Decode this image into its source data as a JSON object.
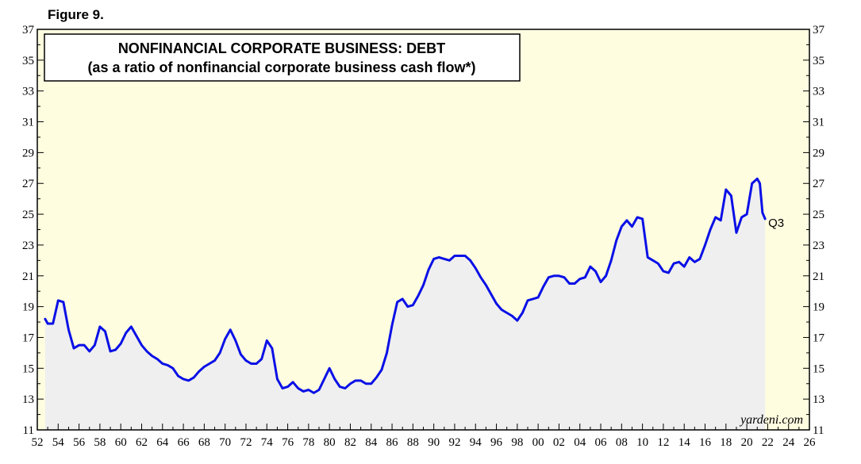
{
  "figure_label": "Figure 9.",
  "credit": "yardeni.com",
  "colors": {
    "plot_bg": "#fffde0",
    "area_fill": "#efefef",
    "line": "#0a10e6"
  },
  "chart_data": {
    "type": "line",
    "title": "NONFINANCIAL CORPORATE BUSINESS: DEBT",
    "subtitle": "(as a ratio of nonfinancial corporate business cash flow*)",
    "xlabel": "",
    "ylabel": "",
    "xlim": [
      1952,
      2026
    ],
    "ylim": [
      11,
      37
    ],
    "y_ticks": [
      11,
      13,
      15,
      17,
      19,
      21,
      23,
      25,
      27,
      29,
      31,
      33,
      35,
      37
    ],
    "x_ticks": [
      1952,
      1954,
      1956,
      1958,
      1960,
      1962,
      1964,
      1966,
      1968,
      1970,
      1972,
      1974,
      1976,
      1978,
      1980,
      1982,
      1984,
      1986,
      1988,
      1990,
      1992,
      1994,
      1996,
      1998,
      2000,
      2002,
      2004,
      2006,
      2008,
      2010,
      2012,
      2014,
      2016,
      2018,
      2020,
      2022,
      2024,
      2026
    ],
    "x_tick_labels": [
      "52",
      "54",
      "56",
      "58",
      "60",
      "62",
      "64",
      "66",
      "68",
      "70",
      "72",
      "74",
      "76",
      "78",
      "80",
      "82",
      "84",
      "86",
      "88",
      "90",
      "92",
      "94",
      "96",
      "98",
      "00",
      "02",
      "04",
      "06",
      "08",
      "10",
      "12",
      "14",
      "16",
      "18",
      "20",
      "22",
      "24",
      "26"
    ],
    "grid": false,
    "legend": "none",
    "area_fill": true,
    "end_label": "Q3",
    "series": [
      {
        "x": [
          1952.75,
          1953.0,
          1953.5,
          1954.0,
          1954.5,
          1955.0,
          1955.5,
          1956.0,
          1956.5,
          1957.0,
          1957.5,
          1958.0,
          1958.5,
          1959.0,
          1959.5,
          1960.0,
          1960.5,
          1961.0,
          1961.5,
          1962.0,
          1962.5,
          1963.0,
          1963.5,
          1964.0,
          1964.5,
          1965.0,
          1965.5,
          1966.0,
          1966.5,
          1967.0,
          1967.5,
          1968.0,
          1968.5,
          1969.0,
          1969.5,
          1970.0,
          1970.5,
          1971.0,
          1971.5,
          1972.0,
          1972.5,
          1973.0,
          1973.5,
          1974.0,
          1974.5,
          1975.0,
          1975.5,
          1976.0,
          1976.5,
          1977.0,
          1977.5,
          1978.0,
          1978.5,
          1979.0,
          1979.5,
          1980.0,
          1980.5,
          1981.0,
          1981.5,
          1982.0,
          1982.5,
          1983.0,
          1983.5,
          1984.0,
          1984.5,
          1985.0,
          1985.5,
          1986.0,
          1986.5,
          1987.0,
          1987.5,
          1988.0,
          1988.5,
          1989.0,
          1989.5,
          1990.0,
          1990.5,
          1991.0,
          1991.5,
          1992.0,
          1992.5,
          1993.0,
          1993.5,
          1994.0,
          1994.5,
          1995.0,
          1995.5,
          1996.0,
          1996.5,
          1997.0,
          1997.5,
          1998.0,
          1998.5,
          1999.0,
          1999.5,
          2000.0,
          2000.5,
          2001.0,
          2001.5,
          2002.0,
          2002.5,
          2003.0,
          2003.5,
          2004.0,
          2004.5,
          2005.0,
          2005.5,
          2006.0,
          2006.5,
          2007.0,
          2007.5,
          2008.0,
          2008.5,
          2009.0,
          2009.5,
          2010.0,
          2010.5,
          2011.0,
          2011.5,
          2012.0,
          2012.5,
          2013.0,
          2013.5,
          2014.0,
          2014.5,
          2015.0,
          2015.5,
          2016.0,
          2016.5,
          2017.0,
          2017.5,
          2018.0,
          2018.5,
          2019.0,
          2019.5,
          2020.0,
          2020.5,
          2021.0,
          2021.25,
          2021.5,
          2021.75
        ],
        "y": [
          18.2,
          17.9,
          17.9,
          19.4,
          19.3,
          17.5,
          16.3,
          16.5,
          16.5,
          16.1,
          16.5,
          17.7,
          17.4,
          16.1,
          16.2,
          16.6,
          17.3,
          17.7,
          17.1,
          16.5,
          16.1,
          15.8,
          15.6,
          15.3,
          15.2,
          15.0,
          14.5,
          14.3,
          14.2,
          14.4,
          14.8,
          15.1,
          15.3,
          15.5,
          16.0,
          16.9,
          17.5,
          16.8,
          15.9,
          15.5,
          15.3,
          15.3,
          15.6,
          16.8,
          16.3,
          14.3,
          13.7,
          13.8,
          14.1,
          13.7,
          13.5,
          13.6,
          13.4,
          13.6,
          14.3,
          15.0,
          14.3,
          13.8,
          13.7,
          14.0,
          14.2,
          14.2,
          14.0,
          14.0,
          14.4,
          14.9,
          16.0,
          17.8,
          19.3,
          19.5,
          19.0,
          19.1,
          19.7,
          20.4,
          21.4,
          22.1,
          22.2,
          22.1,
          22.0,
          22.3,
          22.3,
          22.3,
          22.0,
          21.5,
          20.9,
          20.4,
          19.8,
          19.2,
          18.8,
          18.6,
          18.4,
          18.1,
          18.6,
          19.4,
          19.5,
          19.6,
          20.3,
          20.9,
          21.0,
          21.0,
          20.9,
          20.5,
          20.5,
          20.8,
          20.9,
          21.6,
          21.3,
          20.6,
          21.0,
          22.0,
          23.3,
          24.2,
          24.6,
          24.2,
          24.8,
          24.7,
          22.2,
          22.0,
          21.8,
          21.3,
          21.2,
          21.8,
          21.9,
          21.6,
          22.2,
          21.9,
          22.1,
          23.0,
          24.0,
          24.8,
          24.6,
          26.6,
          26.2,
          23.8,
          24.8,
          25.0,
          27.0,
          27.3,
          27.0,
          25.1,
          24.7
        ]
      }
    ]
  }
}
